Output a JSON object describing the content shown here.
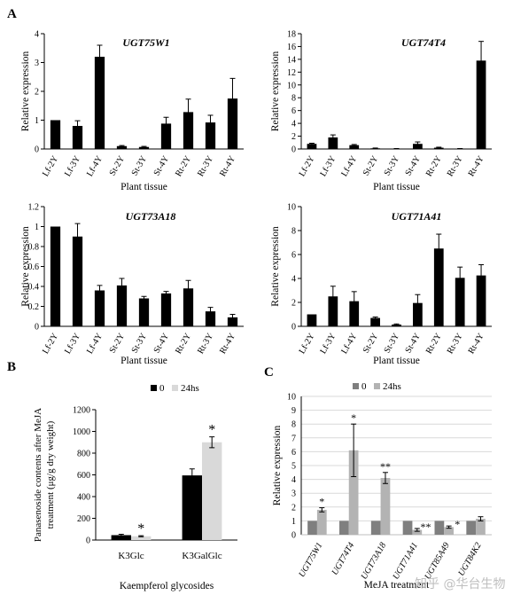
{
  "panels": {
    "a": "A",
    "b": "B",
    "c": "C"
  },
  "chart_data": [
    {
      "id": "p1",
      "type": "bar",
      "title": "UGT75W1",
      "xlabel": "Plant tissue",
      "ylabel": "Relative expression",
      "categories": [
        "Lf-2Y",
        "Lf-3Y",
        "Lf-4Y",
        "St-2Y",
        "St-3Y",
        "St-4Y",
        "Rt-2Y",
        "Rt-3Y",
        "Rt-4Y"
      ],
      "values": [
        1.0,
        0.8,
        3.2,
        0.1,
        0.07,
        0.88,
        1.28,
        0.92,
        1.75
      ],
      "errors": [
        0,
        0.18,
        0.4,
        0.02,
        0.02,
        0.22,
        0.45,
        0.25,
        0.7
      ],
      "ylim": [
        0,
        4
      ],
      "yticks": [
        "0",
        "1",
        "2",
        "3",
        "4"
      ],
      "tick_values": [
        0,
        1,
        2,
        3,
        4
      ],
      "color": "#000000",
      "grid": false
    },
    {
      "id": "p2",
      "type": "bar",
      "title": "UGT74T4",
      "xlabel": "Plant tissue",
      "ylabel": "Relative expression",
      "categories": [
        "Lf-2Y",
        "Lf-3Y",
        "Lf-4Y",
        "St-2Y",
        "St-3Y",
        "St-4Y",
        "Rt-2Y",
        "Rt-3Y",
        "Rt-4Y"
      ],
      "values": [
        0.8,
        1.8,
        0.6,
        0.1,
        0.05,
        0.8,
        0.2,
        0.05,
        13.8
      ],
      "errors": [
        0.1,
        0.4,
        0.1,
        0.05,
        0.02,
        0.3,
        0.08,
        0.02,
        3.0
      ],
      "ylim": [
        0,
        18
      ],
      "yticks": [
        "0",
        "2",
        "4",
        "6",
        "8",
        "10",
        "12",
        "14",
        "16",
        "18"
      ],
      "tick_values": [
        0,
        2,
        4,
        6,
        8,
        10,
        12,
        14,
        16,
        18
      ],
      "color": "#000000",
      "grid": false
    },
    {
      "id": "p3",
      "type": "bar",
      "title": "UGT73A18",
      "xlabel": "Plant tissue",
      "ylabel": "Relative expression",
      "categories": [
        "Lf-2Y",
        "Lf-3Y",
        "Lf-4Y",
        "St-2Y",
        "St-3Y",
        "St-4Y",
        "Rt-2Y",
        "Rt-3Y",
        "Rt-4Y"
      ],
      "values": [
        1.0,
        0.9,
        0.36,
        0.41,
        0.28,
        0.33,
        0.38,
        0.15,
        0.09
      ],
      "errors": [
        0,
        0.13,
        0.05,
        0.07,
        0.02,
        0.02,
        0.08,
        0.04,
        0.03
      ],
      "ylim": [
        0,
        1.2
      ],
      "yticks": [
        "0",
        "0.2",
        "0.4",
        "0.6",
        "0.8",
        "1",
        "1.2"
      ],
      "tick_values": [
        0,
        0.2,
        0.4,
        0.6,
        0.8,
        1,
        1.2
      ],
      "color": "#000000",
      "grid": false
    },
    {
      "id": "p4",
      "type": "bar",
      "title": "UGT71A41",
      "xlabel": "Plant tissue",
      "ylabel": "Relative expression",
      "categories": [
        "Lf-2Y",
        "Lf-3Y",
        "Lf-4Y",
        "St-2Y",
        "St-3Y",
        "St-4Y",
        "Rt-2Y",
        "Rt-3Y",
        "Rt-4Y"
      ],
      "values": [
        1.0,
        2.5,
        2.1,
        0.7,
        0.15,
        1.95,
        6.5,
        4.05,
        4.25
      ],
      "errors": [
        0,
        0.85,
        0.8,
        0.08,
        0.05,
        0.7,
        1.2,
        0.9,
        0.9
      ],
      "ylim": [
        0,
        10
      ],
      "yticks": [
        "0",
        "2",
        "4",
        "6",
        "8",
        "10"
      ],
      "tick_values": [
        0,
        2,
        4,
        6,
        8,
        10
      ],
      "color": "#000000",
      "grid": false
    },
    {
      "id": "p5",
      "type": "bar",
      "title": "",
      "xlabel": "Kaempferol glycosides",
      "ylabel_lines": [
        "Panasenoside contents after MeJA",
        "treatment (μg/g dry weight)"
      ],
      "categories": [
        "K3Glc",
        "K3GalGlc"
      ],
      "series": [
        {
          "name": "0",
          "values": [
            45,
            595
          ],
          "errors": [
            8,
            60
          ],
          "color": "#000000"
        },
        {
          "name": "24hs",
          "values": [
            35,
            900
          ],
          "errors": [
            5,
            50
          ],
          "color": "#d9d9d9"
        }
      ],
      "stars": [
        "",
        "*",
        "",
        "*"
      ],
      "ylim": [
        0,
        1200
      ],
      "yticks": [
        "0",
        "200",
        "400",
        "600",
        "800",
        "1000",
        "1200"
      ],
      "tick_values": [
        0,
        200,
        400,
        600,
        800,
        1000,
        1200
      ],
      "legend": "top",
      "grid": false
    },
    {
      "id": "p6",
      "type": "bar",
      "title": "",
      "xlabel": "MeJA treatment",
      "ylabel": "Relative expression",
      "categories": [
        "UGT75W1",
        "UGT74T4",
        "UGT73A18",
        "UGT71A41",
        "UGT85A49",
        "UGT84K2"
      ],
      "series": [
        {
          "name": "0",
          "values": [
            1,
            1,
            1,
            1,
            1,
            1
          ],
          "errors": [
            0,
            0,
            0,
            0,
            0,
            0
          ],
          "color": "#7f7f7f"
        },
        {
          "name": "24hs",
          "values": [
            1.8,
            6.1,
            4.1,
            0.35,
            0.55,
            1.15
          ],
          "errors": [
            0.15,
            1.9,
            0.4,
            0.1,
            0.08,
            0.15
          ],
          "color": "#b3b3b3"
        }
      ],
      "stars": [
        "",
        "*",
        "",
        "*",
        "",
        "**",
        "",
        "**",
        "",
        "*",
        "",
        ""
      ],
      "ylim": [
        0,
        10
      ],
      "yticks": [
        "0",
        "1",
        "2",
        "3",
        "4",
        "5",
        "6",
        "7",
        "8",
        "9",
        "10"
      ],
      "tick_values": [
        0,
        1,
        2,
        3,
        4,
        5,
        6,
        7,
        8,
        9,
        10
      ],
      "legend": "top",
      "grid": true
    }
  ],
  "watermark": "知乎 @华台生物"
}
